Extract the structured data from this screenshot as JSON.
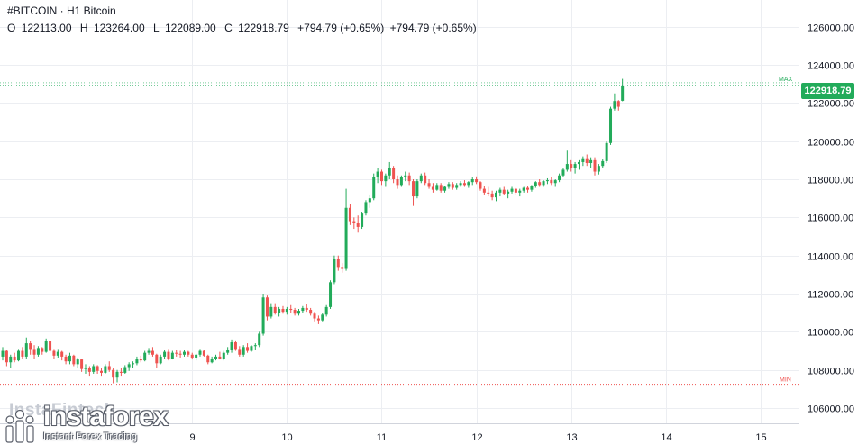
{
  "header": {
    "symbol_line": "#BITCOIN · H1 Bitcoin",
    "ohlc": [
      {
        "label": "O",
        "value": "122113.00"
      },
      {
        "label": "H",
        "value": "123264.00"
      },
      {
        "label": "L",
        "value": "122089.00"
      },
      {
        "label": "C",
        "value": "122918.79"
      }
    ],
    "change_1": "+794.79 (+0.65%)",
    "change_2": "+794.79 (+0.65%)"
  },
  "price_axis": {
    "labels": [
      "126000.00",
      "124000.00",
      "122000.00",
      "120000.00",
      "118000.00",
      "116000.00",
      "114000.00",
      "112000.00",
      "110000.00",
      "108000.00",
      "106000.00"
    ],
    "current_price": "122918.79",
    "max_label": "MAX",
    "min_label": "MIN"
  },
  "time_axis": {
    "labels": [
      "9",
      "10",
      "11",
      "12",
      "13",
      "14",
      "15"
    ]
  },
  "watermark": {
    "top_text": "InstaFintech",
    "brand": "instaforex",
    "tagline": "Instant Forex Trading"
  },
  "colors": {
    "up": "#22ab5a",
    "down": "#ef5350",
    "grid": "#eceef2",
    "current_price": "#22ab5a"
  },
  "chart_data": {
    "type": "candlestick",
    "title": "#BITCOIN · H1 Bitcoin",
    "timeframe": "H1",
    "ylim": [
      105200,
      127400
    ],
    "max_price": 122918.79,
    "min_price": 107250,
    "x_day_ticks": [
      {
        "label": "9",
        "bar": 48
      },
      {
        "label": "10",
        "bar": 72
      },
      {
        "label": "11",
        "bar": 96
      },
      {
        "label": "12",
        "bar": 120
      },
      {
        "label": "13",
        "bar": 144
      },
      {
        "label": "14",
        "bar": 168
      },
      {
        "label": "15",
        "bar": 192
      }
    ],
    "candles": [
      [
        108700,
        109200,
        108500,
        109000
      ],
      [
        109000,
        109050,
        108200,
        108400
      ],
      [
        108400,
        108800,
        108100,
        108700
      ],
      [
        108700,
        108900,
        108400,
        108500
      ],
      [
        108500,
        109100,
        108450,
        109000
      ],
      [
        109000,
        109200,
        108600,
        108700
      ],
      [
        108700,
        109700,
        108600,
        109400
      ],
      [
        109400,
        109500,
        108800,
        109100
      ],
      [
        109100,
        109300,
        108600,
        108800
      ],
      [
        108800,
        109250,
        108700,
        109150
      ],
      [
        109150,
        109200,
        108800,
        108950
      ],
      [
        108950,
        109650,
        108900,
        109500
      ],
      [
        109500,
        109550,
        108900,
        109000
      ],
      [
        109000,
        109100,
        108600,
        108750
      ],
      [
        108750,
        109100,
        108650,
        108950
      ],
      [
        108950,
        109000,
        108500,
        108700
      ],
      [
        108700,
        108800,
        108300,
        108450
      ],
      [
        108450,
        108900,
        108300,
        108750
      ],
      [
        108750,
        108800,
        108200,
        108300
      ],
      [
        108300,
        108650,
        108100,
        108550
      ],
      [
        108550,
        108600,
        107900,
        108050
      ],
      [
        108050,
        108300,
        107800,
        108100
      ],
      [
        108100,
        108200,
        107700,
        107900
      ],
      [
        107900,
        108300,
        107800,
        108200
      ],
      [
        108200,
        108250,
        107800,
        107950
      ],
      [
        107950,
        108100,
        107700,
        107850
      ],
      [
        107850,
        108300,
        107800,
        108200
      ],
      [
        108200,
        108450,
        107900,
        108000
      ],
      [
        108000,
        108100,
        107300,
        107600
      ],
      [
        107600,
        108000,
        107350,
        107900
      ],
      [
        107900,
        108100,
        107700,
        107850
      ],
      [
        107850,
        108250,
        107800,
        108150
      ],
      [
        108150,
        108400,
        107950,
        108300
      ],
      [
        108300,
        108450,
        108100,
        108350
      ],
      [
        108350,
        108700,
        108250,
        108600
      ],
      [
        108600,
        108750,
        108400,
        108500
      ],
      [
        108500,
        109000,
        108450,
        108900
      ],
      [
        108900,
        109150,
        108800,
        109000
      ],
      [
        109000,
        109200,
        108700,
        108800
      ],
      [
        108800,
        108850,
        108100,
        108350
      ],
      [
        108350,
        108800,
        108300,
        108700
      ],
      [
        108700,
        109050,
        108600,
        108950
      ],
      [
        108950,
        109100,
        108500,
        108600
      ],
      [
        108600,
        109000,
        108550,
        108900
      ],
      [
        108900,
        109050,
        108700,
        108850
      ],
      [
        108850,
        109000,
        108650,
        108800
      ],
      [
        108800,
        109050,
        108700,
        108950
      ],
      [
        108950,
        109000,
        108700,
        108800
      ],
      [
        108800,
        108900,
        108550,
        108650
      ],
      [
        108650,
        108850,
        108500,
        108800
      ],
      [
        108800,
        109100,
        108700,
        109000
      ],
      [
        109000,
        109050,
        108700,
        108750
      ],
      [
        108750,
        108800,
        108300,
        108400
      ],
      [
        108400,
        108700,
        108350,
        108600
      ],
      [
        108600,
        108800,
        108500,
        108700
      ],
      [
        108700,
        108950,
        108550,
        108600
      ],
      [
        108600,
        109000,
        108500,
        108900
      ],
      [
        108900,
        109200,
        108800,
        109050
      ],
      [
        109050,
        109600,
        108900,
        109450
      ],
      [
        109450,
        109550,
        109000,
        109100
      ],
      [
        109100,
        109250,
        108700,
        108800
      ],
      [
        108800,
        109300,
        108700,
        109200
      ],
      [
        109200,
        109400,
        108900,
        109000
      ],
      [
        109000,
        109300,
        108950,
        109250
      ],
      [
        109250,
        109400,
        109050,
        109300
      ],
      [
        109300,
        110000,
        109200,
        109900
      ],
      [
        109900,
        112000,
        109800,
        111800
      ],
      [
        111800,
        111900,
        110600,
        110800
      ],
      [
        110800,
        111500,
        110700,
        111300
      ],
      [
        111300,
        111500,
        110900,
        111000
      ],
      [
        111000,
        111300,
        110800,
        111200
      ],
      [
        111200,
        111350,
        110950,
        111050
      ],
      [
        111050,
        111300,
        110900,
        111200
      ],
      [
        111200,
        111400,
        111000,
        111150
      ],
      [
        111150,
        111250,
        110850,
        110950
      ],
      [
        110950,
        111200,
        110850,
        111100
      ],
      [
        111100,
        111350,
        111000,
        111250
      ],
      [
        111250,
        111450,
        111050,
        111150
      ],
      [
        111150,
        111250,
        110850,
        110950
      ],
      [
        110950,
        111050,
        110550,
        110700
      ],
      [
        110700,
        110850,
        110400,
        110600
      ],
      [
        110600,
        111000,
        110550,
        110900
      ],
      [
        110900,
        111400,
        110800,
        111300
      ],
      [
        111300,
        112700,
        111200,
        112600
      ],
      [
        112600,
        114000,
        112500,
        113800
      ],
      [
        113800,
        114000,
        113200,
        113400
      ],
      [
        113400,
        113600,
        113100,
        113300
      ],
      [
        113300,
        117500,
        113200,
        116500
      ],
      [
        116500,
        116700,
        115600,
        115800
      ],
      [
        115800,
        116000,
        115400,
        115700
      ],
      [
        115700,
        116100,
        115200,
        115500
      ],
      [
        115500,
        116300,
        115400,
        116200
      ],
      [
        116200,
        116900,
        116100,
        116800
      ],
      [
        116800,
        117200,
        116500,
        117000
      ],
      [
        117000,
        118300,
        116900,
        118100
      ],
      [
        118100,
        118600,
        117800,
        118400
      ],
      [
        118400,
        118500,
        117700,
        117900
      ],
      [
        117900,
        118300,
        117600,
        118200
      ],
      [
        118200,
        118900,
        118000,
        118600
      ],
      [
        118600,
        118700,
        117800,
        118000
      ],
      [
        118000,
        118200,
        117500,
        117700
      ],
      [
        117700,
        118200,
        117600,
        118100
      ],
      [
        118100,
        118400,
        117900,
        118200
      ],
      [
        118200,
        118350,
        117700,
        117900
      ],
      [
        117900,
        118000,
        116600,
        117100
      ],
      [
        117100,
        118000,
        117000,
        117900
      ],
      [
        117900,
        118300,
        117800,
        118200
      ],
      [
        118200,
        118350,
        117700,
        117800
      ],
      [
        117800,
        118000,
        117500,
        117600
      ],
      [
        117600,
        117800,
        117300,
        117450
      ],
      [
        117450,
        117800,
        117400,
        117700
      ],
      [
        117700,
        117800,
        117300,
        117400
      ],
      [
        117400,
        117650,
        117300,
        117600
      ],
      [
        117600,
        117850,
        117500,
        117750
      ],
      [
        117750,
        117850,
        117450,
        117550
      ],
      [
        117550,
        117800,
        117450,
        117700
      ],
      [
        117700,
        117900,
        117600,
        117800
      ],
      [
        117800,
        117950,
        117600,
        117700
      ],
      [
        117700,
        117900,
        117550,
        117850
      ],
      [
        117850,
        118100,
        117700,
        118000
      ],
      [
        118000,
        118150,
        117750,
        117850
      ],
      [
        117850,
        117900,
        117400,
        117500
      ],
      [
        117500,
        117650,
        117200,
        117300
      ],
      [
        117300,
        117600,
        117100,
        117250
      ],
      [
        117250,
        117400,
        116900,
        117050
      ],
      [
        117050,
        117400,
        116850,
        117300
      ],
      [
        117300,
        117550,
        117100,
        117450
      ],
      [
        117450,
        117600,
        117150,
        117250
      ],
      [
        117250,
        117450,
        117000,
        117350
      ],
      [
        117350,
        117600,
        117250,
        117500
      ],
      [
        117500,
        117550,
        117150,
        117300
      ],
      [
        117300,
        117500,
        117100,
        117400
      ],
      [
        117400,
        117600,
        117300,
        117550
      ],
      [
        117550,
        117650,
        117300,
        117450
      ],
      [
        117450,
        117700,
        117350,
        117650
      ],
      [
        117650,
        117900,
        117550,
        117850
      ],
      [
        117850,
        118000,
        117600,
        117700
      ],
      [
        117700,
        117950,
        117600,
        117900
      ],
      [
        117900,
        118050,
        117750,
        117950
      ],
      [
        117950,
        118100,
        117700,
        117800
      ],
      [
        117800,
        118000,
        117600,
        117950
      ],
      [
        117950,
        118300,
        117850,
        118200
      ],
      [
        118200,
        118600,
        118100,
        118500
      ],
      [
        118500,
        119500,
        118400,
        118800
      ],
      [
        118800,
        119000,
        118400,
        118600
      ],
      [
        118600,
        118900,
        118300,
        118800
      ],
      [
        118800,
        119000,
        118500,
        118900
      ],
      [
        118900,
        119200,
        118700,
        119100
      ],
      [
        119100,
        119300,
        118700,
        118850
      ],
      [
        118850,
        119150,
        118600,
        119000
      ],
      [
        119000,
        119150,
        118200,
        118400
      ],
      [
        118400,
        118800,
        118250,
        118700
      ],
      [
        118700,
        119050,
        118600,
        118950
      ],
      [
        118950,
        120000,
        118850,
        119900
      ],
      [
        119900,
        121800,
        119800,
        121700
      ],
      [
        121700,
        122500,
        121600,
        122100
      ],
      [
        122100,
        122150,
        121600,
        121800
      ],
      [
        122113,
        123264,
        122089,
        122918.79
      ]
    ]
  }
}
